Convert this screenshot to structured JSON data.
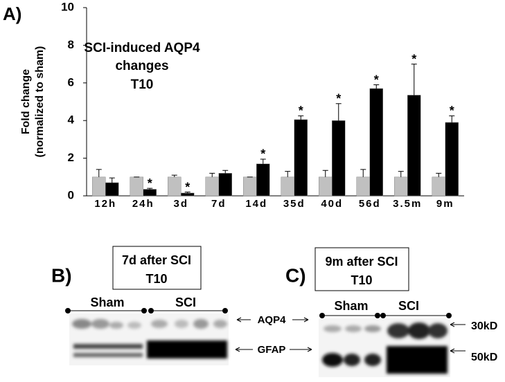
{
  "chart_data": {
    "type": "bar",
    "panel_label": "A)",
    "title_lines": [
      "SCI-induced AQP4",
      "changes",
      "T10"
    ],
    "ylabel_lines": [
      "Fold change",
      "(normalized to sham)"
    ],
    "categories": [
      "12h",
      "24h",
      "3d",
      "7d",
      "14d",
      "35d",
      "40d",
      "56d",
      "3.5m",
      "9m"
    ],
    "series": [
      {
        "color": "#c0c0c0",
        "values": [
          1,
          1,
          1,
          1,
          1,
          1,
          1,
          1,
          1,
          1
        ],
        "errors": [
          0.4,
          0,
          0.1,
          0.2,
          0,
          0.3,
          0.35,
          0.4,
          0.3,
          0.2
        ]
      },
      {
        "color": "#000000",
        "values": [
          0.7,
          0.35,
          0.15,
          1.2,
          1.7,
          4.05,
          4.0,
          5.7,
          5.35,
          3.9
        ],
        "errors": [
          0.25,
          0.05,
          0.05,
          0.15,
          0.25,
          0.2,
          0.9,
          0.2,
          1.65,
          0.35
        ],
        "markers": [
          null,
          "*",
          "*",
          null,
          "*",
          "*",
          "*",
          "*",
          "*",
          "*"
        ]
      }
    ],
    "ylim": [
      0,
      10
    ],
    "yticks": [
      0,
      2,
      4,
      6,
      8,
      10
    ],
    "grid": false
  },
  "panel_b": {
    "label": "B)",
    "box": [
      "7d after SCI",
      "T10"
    ],
    "groups": [
      "Sham",
      "SCI"
    ],
    "bands": [
      "AQP4",
      "GFAP"
    ]
  },
  "panel_c": {
    "label": "C)",
    "box": [
      "9m after SCI",
      "T10"
    ],
    "groups": [
      "Sham",
      "SCI"
    ],
    "sizes": [
      "30kD",
      "50kD"
    ]
  }
}
